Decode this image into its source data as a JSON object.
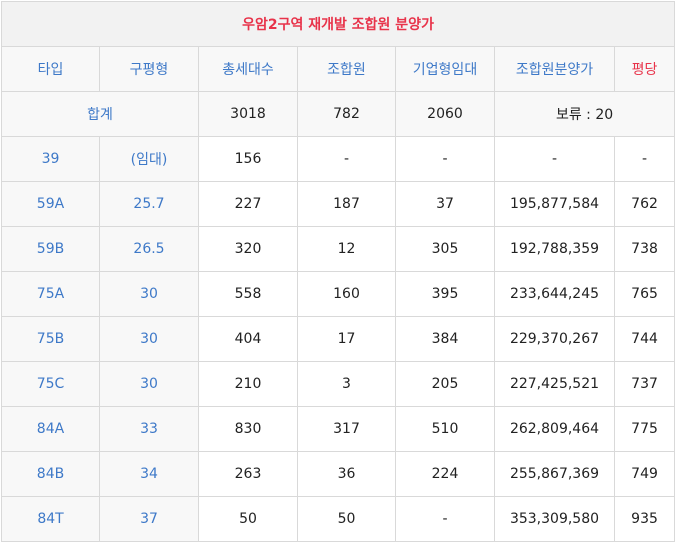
{
  "title": "우암2구역 재개발 조합원 분양가",
  "headers": [
    "타입",
    "구평형",
    "총세대수",
    "조합원",
    "기업형임대",
    "조합원분양가",
    "평당"
  ],
  "total": {
    "label": "합계",
    "households": "3018",
    "members": "782",
    "rental": "2060",
    "reserve": "보류 : 20"
  },
  "rows": [
    {
      "type": "39",
      "pyeong": "(임대)",
      "households": "156",
      "members": "-",
      "rental": "-",
      "price": "-",
      "per_pyeong": "-"
    },
    {
      "type": "59A",
      "pyeong": "25.7",
      "households": "227",
      "members": "187",
      "rental": "37",
      "price": "195,877,584",
      "per_pyeong": "762"
    },
    {
      "type": "59B",
      "pyeong": "26.5",
      "households": "320",
      "members": "12",
      "rental": "305",
      "price": "192,788,359",
      "per_pyeong": "738"
    },
    {
      "type": "75A",
      "pyeong": "30",
      "households": "558",
      "members": "160",
      "rental": "395",
      "price": "233,644,245",
      "per_pyeong": "765"
    },
    {
      "type": "75B",
      "pyeong": "30",
      "households": "404",
      "members": "17",
      "rental": "384",
      "price": "229,370,267",
      "per_pyeong": "744"
    },
    {
      "type": "75C",
      "pyeong": "30",
      "households": "210",
      "members": "3",
      "rental": "205",
      "price": "227,425,521",
      "per_pyeong": "737"
    },
    {
      "type": "84A",
      "pyeong": "33",
      "households": "830",
      "members": "317",
      "rental": "510",
      "price": "262,809,464",
      "per_pyeong": "775"
    },
    {
      "type": "84B",
      "pyeong": "34",
      "households": "263",
      "members": "36",
      "rental": "224",
      "price": "255,867,369",
      "per_pyeong": "749"
    },
    {
      "type": "84T",
      "pyeong": "37",
      "households": "50",
      "members": "50",
      "rental": "-",
      "price": "353,309,580",
      "per_pyeong": "935"
    }
  ],
  "colors": {
    "title": "#e8334a",
    "header": "#3e79c8",
    "header_accent": "#e8334a",
    "key_cell_bg": "#f8f8f8",
    "title_bg": "#f2f2f2",
    "border": "#d9d9d9"
  }
}
